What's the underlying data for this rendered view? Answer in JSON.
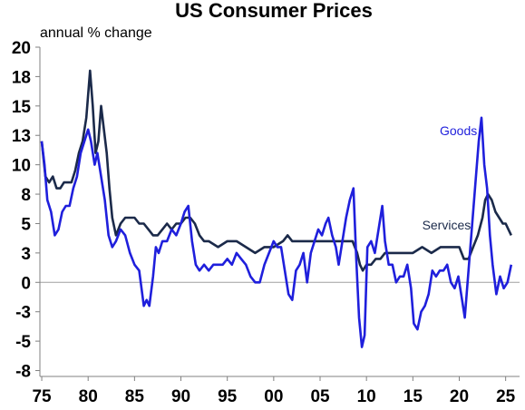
{
  "chart_data": {
    "type": "line",
    "title": "US Consumer Prices",
    "ylabel": "annual % change",
    "ylim": [
      -8,
      20
    ],
    "xlim": [
      1974.8,
      2026.5
    ],
    "y_ticks": [
      "20",
      "18",
      "15",
      "13",
      "10",
      "8",
      "5",
      "3",
      "0",
      "-3",
      "-5",
      "-8"
    ],
    "y_tick_values": [
      20,
      17.5,
      15,
      12.5,
      10,
      7.5,
      5,
      2.5,
      0,
      -2.5,
      -5,
      -7.5
    ],
    "x_ticks": [
      "75",
      "80",
      "85",
      "90",
      "95",
      "00",
      "05",
      "10",
      "15",
      "20",
      "25"
    ],
    "x_tick_values": [
      1975,
      1980,
      1985,
      1990,
      1995,
      2000,
      2005,
      2010,
      2015,
      2020,
      2025
    ],
    "zero_line": true,
    "grid": false,
    "colors": {
      "goods": "#1f1fdc",
      "services": "#1b2a4a",
      "axis": "#808080",
      "zero": "#a0a0a0"
    },
    "series": [
      {
        "name": "Goods",
        "x": [
          1975,
          1975.3,
          1975.6,
          1976,
          1976.4,
          1976.8,
          1977.2,
          1977.6,
          1978,
          1978.4,
          1978.8,
          1979.2,
          1979.6,
          1980,
          1980.3,
          1980.7,
          1981,
          1981.4,
          1981.8,
          1982.2,
          1982.6,
          1983,
          1983.5,
          1984,
          1984.5,
          1985,
          1985.5,
          1986,
          1986.3,
          1986.6,
          1987,
          1987.3,
          1987.6,
          1988,
          1988.5,
          1989,
          1989.5,
          1990,
          1990.4,
          1990.8,
          1991.2,
          1991.6,
          1992,
          1992.5,
          1993,
          1993.5,
          1994,
          1994.5,
          1995,
          1995.5,
          1996,
          1996.5,
          1997,
          1997.5,
          1998,
          1998.5,
          1999,
          1999.5,
          2000,
          2000.4,
          2000.8,
          2001.2,
          2001.6,
          2002,
          2002.4,
          2002.8,
          2003.2,
          2003.6,
          2004,
          2004.4,
          2004.8,
          2005.2,
          2005.6,
          2005.9,
          2006.3,
          2006.7,
          2007,
          2007.4,
          2007.8,
          2008.2,
          2008.6,
          2008.9,
          2009.2,
          2009.5,
          2009.8,
          2010.1,
          2010.5,
          2010.9,
          2011.3,
          2011.7,
          2012,
          2012.4,
          2012.8,
          2013.2,
          2013.6,
          2014,
          2014.4,
          2014.8,
          2015.1,
          2015.5,
          2015.9,
          2016.3,
          2016.7,
          2017.1,
          2017.5,
          2017.9,
          2018.3,
          2018.7,
          2019.1,
          2019.5,
          2019.9,
          2020.3,
          2020.6,
          2021,
          2021.4,
          2021.8,
          2022.1,
          2022.4,
          2022.7,
          2023,
          2023.3,
          2023.6,
          2024,
          2024.4,
          2024.8,
          2025.2,
          2025.6
        ],
        "values": [
          12,
          10,
          7,
          6,
          4,
          4.5,
          6,
          6.5,
          6.5,
          8,
          9,
          11,
          12,
          13,
          12,
          10,
          11,
          9,
          7,
          4,
          3,
          3.5,
          4.5,
          4,
          2.5,
          1.5,
          1,
          -2,
          -1.5,
          -2,
          0.5,
          3,
          2.5,
          3.5,
          3.5,
          4.5,
          4,
          5,
          6,
          6.5,
          3.5,
          1.5,
          1,
          1.5,
          1,
          1.5,
          1.5,
          1.5,
          2,
          1.5,
          2.5,
          2,
          1.5,
          0.5,
          0,
          0,
          1.5,
          2.5,
          3.5,
          3,
          3,
          1,
          -1,
          -1.5,
          1,
          1.5,
          2.5,
          0,
          2.5,
          3.5,
          4.5,
          4,
          5,
          5.5,
          4,
          3,
          1.5,
          3.5,
          5.5,
          7,
          8,
          2,
          -3,
          -5.5,
          -4.5,
          3,
          3.5,
          2.5,
          4.5,
          6.5,
          3.5,
          1.5,
          1.5,
          0,
          0.5,
          0.5,
          1.5,
          -0.5,
          -3.5,
          -4,
          -2.5,
          -2,
          -1,
          1,
          0.5,
          1,
          1,
          1.5,
          0,
          -0.5,
          0.5,
          -1.5,
          -3,
          1,
          5,
          9,
          12,
          14,
          10,
          8,
          4,
          1.5,
          -1,
          0.5,
          -0.5,
          0,
          1.5
        ]
      },
      {
        "name": "Services",
        "x": [
          1975,
          1975.4,
          1975.8,
          1976.2,
          1976.6,
          1977,
          1977.4,
          1977.8,
          1978.2,
          1978.6,
          1979,
          1979.4,
          1979.8,
          1980.2,
          1980.5,
          1980.8,
          1981.1,
          1981.4,
          1981.7,
          1982,
          1982.3,
          1982.6,
          1983,
          1983.5,
          1984,
          1984.5,
          1985,
          1985.5,
          1986,
          1986.5,
          1987,
          1987.5,
          1988,
          1988.5,
          1989,
          1989.5,
          1990,
          1990.5,
          1991,
          1991.5,
          1992,
          1992.5,
          1993,
          1994,
          1995,
          1996,
          1997,
          1998,
          1999,
          2000,
          2001,
          2001.5,
          2002,
          2002.5,
          2003,
          2004,
          2005,
          2006,
          2007,
          2007.5,
          2008,
          2008.5,
          2009,
          2009.3,
          2009.6,
          2010,
          2010.5,
          2011,
          2011.5,
          2012,
          2013,
          2014,
          2015,
          2016,
          2017,
          2018,
          2019,
          2020,
          2020.5,
          2021,
          2021.5,
          2022,
          2022.5,
          2022.8,
          2023.1,
          2023.5,
          2023.9,
          2024.3,
          2024.7,
          2025,
          2025.3,
          2025.6
        ],
        "values": [
          12,
          9,
          8.5,
          9,
          8,
          8,
          8.5,
          8.5,
          8.5,
          9.5,
          11,
          12,
          14,
          18,
          15,
          11,
          12,
          15,
          13,
          11,
          8,
          5.5,
          4,
          5,
          5.5,
          5.5,
          5.5,
          5,
          5,
          4.5,
          4,
          4,
          4.5,
          5,
          4.5,
          5,
          5,
          5.5,
          5.5,
          5,
          4,
          3.5,
          3.5,
          3,
          3.5,
          3.5,
          3,
          2.5,
          3,
          3,
          3.5,
          4,
          3.5,
          3.5,
          3.5,
          3.5,
          3.5,
          3.5,
          3.5,
          3.5,
          3.5,
          3.5,
          2.5,
          1.5,
          1,
          1.5,
          1.5,
          2,
          2,
          2.5,
          2.5,
          2.5,
          2.5,
          3,
          2.5,
          3,
          3,
          3,
          2,
          2,
          3,
          4,
          5.5,
          7,
          7.5,
          7,
          6,
          5.5,
          5,
          5,
          4.5,
          4
        ]
      }
    ],
    "annotations": [
      {
        "text": "Goods",
        "series": "Goods",
        "x": 2017.9,
        "y": 12.5
      },
      {
        "text": "Services",
        "series": "Services",
        "x": 2016,
        "y": 4.5
      }
    ]
  }
}
